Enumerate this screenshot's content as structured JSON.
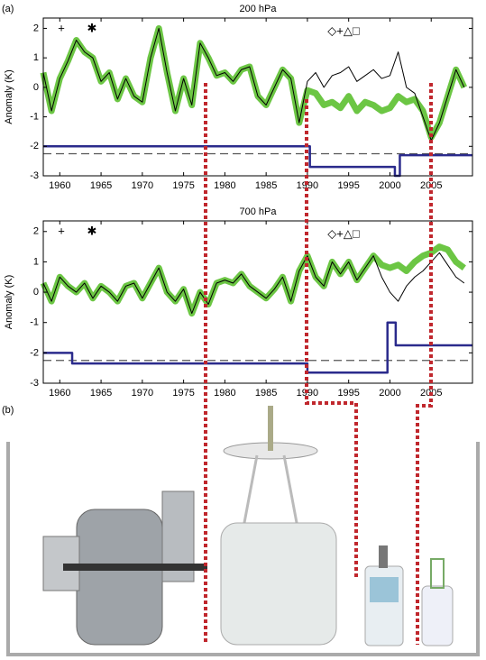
{
  "panel_labels": [
    "(a)",
    "(b)"
  ],
  "chart_data": [
    {
      "type": "line",
      "title": "200 hPa",
      "y_label": "Anomaly (K)",
      "annotations": [
        "+",
        "✱",
        "◇+△□"
      ],
      "xlim": [
        1958,
        2010
      ],
      "ylim": [
        -3,
        2.35
      ],
      "xticks": [
        1960,
        1965,
        1970,
        1975,
        1980,
        1985,
        1990,
        1995,
        2000,
        2005
      ],
      "yticks": [
        -3,
        -2,
        -1,
        0,
        1,
        2
      ],
      "x": [
        1958,
        1959,
        1960,
        1961,
        1962,
        1963,
        1964,
        1965,
        1966,
        1967,
        1968,
        1969,
        1970,
        1971,
        1972,
        1973,
        1974,
        1975,
        1976,
        1977,
        1978,
        1979,
        1980,
        1981,
        1982,
        1983,
        1984,
        1985,
        1986,
        1987,
        1988,
        1989,
        1990,
        1991,
        1992,
        1993,
        1994,
        1995,
        1996,
        1997,
        1998,
        1999,
        2000,
        2001,
        2002,
        2003,
        2004,
        2005,
        2006,
        2007,
        2008,
        2009
      ],
      "reference_lines": [
        {
          "value": -2.25,
          "color": "#555555"
        }
      ],
      "series": [
        {
          "color": "#6cc644",
          "width": 7,
          "values": [
            0.5,
            -0.8,
            0.3,
            0.9,
            1.6,
            1.2,
            1.0,
            0.2,
            0.5,
            -0.4,
            0.3,
            -0.3,
            -0.5,
            1.0,
            2.0,
            0.5,
            -0.8,
            0.3,
            -0.6,
            1.5,
            1.0,
            0.4,
            0.5,
            0.2,
            0.6,
            0.7,
            -0.3,
            -0.6,
            0.0,
            0.6,
            0.3,
            -1.2,
            -0.1,
            -0.2,
            -0.6,
            -0.5,
            -0.7,
            -0.3,
            -0.8,
            -0.5,
            -0.6,
            -0.8,
            -0.7,
            -0.3,
            -0.5,
            -0.4,
            -0.8,
            -1.7,
            -1.2,
            -0.3,
            0.6,
            0.0
          ]
        },
        {
          "color": "#000000",
          "width": 1,
          "values": [
            0.5,
            -0.8,
            0.3,
            0.9,
            1.6,
            1.2,
            1.0,
            0.2,
            0.5,
            -0.4,
            0.3,
            -0.3,
            -0.5,
            1.0,
            2.0,
            0.5,
            -0.8,
            0.3,
            -0.6,
            1.5,
            1.0,
            0.4,
            0.5,
            0.2,
            0.6,
            0.7,
            -0.3,
            -0.6,
            0.0,
            0.6,
            0.3,
            -1.2,
            0.2,
            0.5,
            0.0,
            0.4,
            0.5,
            0.7,
            0.2,
            0.4,
            0.6,
            0.3,
            0.4,
            1.2,
            0.0,
            -0.2,
            -1.0,
            -1.8,
            -1.2,
            -0.3,
            0.6,
            0.0
          ]
        },
        {
          "color": "#2b2b8c",
          "width": 2.5,
          "x": [
            1958,
            1990.3,
            1990.3,
            2000.6,
            2000.6,
            2001.2,
            2001.2,
            2010
          ],
          "values": [
            -2,
            -2,
            -2.7,
            -2.7,
            -3,
            -3,
            -2.3,
            -2.3
          ]
        }
      ]
    },
    {
      "type": "line",
      "title": "700 hPa",
      "y_label": "Anomaly (K)",
      "annotations": [
        "+",
        "✱",
        "◇+△□"
      ],
      "xlim": [
        1958,
        2010
      ],
      "ylim": [
        -3,
        2.35
      ],
      "xticks": [
        1960,
        1965,
        1970,
        1975,
        1980,
        1985,
        1990,
        1995,
        2000,
        2005
      ],
      "yticks": [
        -3,
        -2,
        -1,
        0,
        1,
        2
      ],
      "x": [
        1958,
        1959,
        1960,
        1961,
        1962,
        1963,
        1964,
        1965,
        1966,
        1967,
        1968,
        1969,
        1970,
        1971,
        1972,
        1973,
        1974,
        1975,
        1976,
        1977,
        1978,
        1979,
        1980,
        1981,
        1982,
        1983,
        1984,
        1985,
        1986,
        1987,
        1988,
        1989,
        1990,
        1991,
        1992,
        1993,
        1994,
        1995,
        1996,
        1997,
        1998,
        1999,
        2000,
        2001,
        2002,
        2003,
        2004,
        2005,
        2006,
        2007,
        2008,
        2009
      ],
      "reference_lines": [
        {
          "value": -2.25,
          "color": "#555555"
        }
      ],
      "series": [
        {
          "color": "#6cc644",
          "width": 7,
          "values": [
            0.3,
            -0.3,
            0.5,
            0.2,
            0.0,
            0.3,
            -0.2,
            0.2,
            0.0,
            -0.3,
            0.2,
            0.3,
            -0.2,
            0.3,
            0.8,
            0.0,
            -0.3,
            0.1,
            -0.7,
            0.0,
            -0.4,
            0.3,
            0.4,
            0.3,
            0.6,
            0.2,
            0.0,
            -0.2,
            0.1,
            0.5,
            -0.3,
            0.7,
            1.2,
            0.5,
            0.2,
            1.0,
            0.6,
            1.0,
            0.4,
            0.8,
            1.2,
            0.9,
            0.8,
            0.9,
            0.7,
            1.0,
            1.2,
            1.3,
            1.5,
            1.4,
            1.0,
            0.8
          ]
        },
        {
          "color": "#000000",
          "width": 1,
          "values": [
            0.3,
            -0.3,
            0.5,
            0.2,
            0.0,
            0.3,
            -0.2,
            0.2,
            0.0,
            -0.3,
            0.2,
            0.3,
            -0.2,
            0.3,
            0.8,
            0.0,
            -0.3,
            0.1,
            -0.7,
            0.0,
            -0.4,
            0.3,
            0.4,
            0.3,
            0.6,
            0.2,
            0.0,
            -0.2,
            0.1,
            0.5,
            -0.3,
            0.7,
            1.2,
            0.5,
            0.2,
            1.0,
            0.6,
            1.0,
            0.4,
            0.8,
            1.2,
            0.5,
            0.0,
            -0.3,
            0.2,
            0.5,
            0.7,
            1.0,
            1.3,
            0.9,
            0.5,
            0.3
          ]
        },
        {
          "color": "#2b2b8c",
          "width": 2.5,
          "x": [
            1958,
            1961.5,
            1961.5,
            1990,
            1990,
            1999.7,
            1999.7,
            2000.7,
            2000.7,
            2010
          ],
          "values": [
            -2,
            -2,
            -2.35,
            -2.35,
            -2.65,
            -2.65,
            -1,
            -1,
            -1.75,
            -1.75
          ]
        }
      ]
    }
  ]
}
